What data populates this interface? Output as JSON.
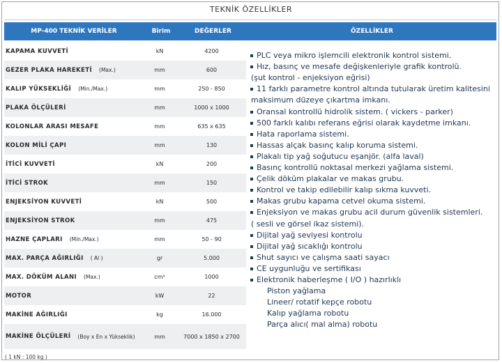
{
  "title": "TEKNİK ÖZELLİKLER",
  "table": {
    "headers": [
      "MP-400 TEKNİK VERİLER",
      "Birim",
      "DEĞERLER",
      "ÖZELLİKLER"
    ],
    "rows": [
      {
        "name": "KAPAMA KUVVETİ",
        "unit": "kN",
        "value": "4200"
      },
      {
        "name": "GEZER PLAKA HAREKETİ",
        "qualifier": "(Max.)",
        "unit": "mm",
        "value": "600"
      },
      {
        "name": "KALIP YÜKSEKLİĞİ",
        "qualifier": "(Min./Max.)",
        "unit": "mm",
        "value": "250 - 850"
      },
      {
        "name": "PLAKA ÖLÇÜLERİ",
        "unit": "mm",
        "value": "1000 x 1000"
      },
      {
        "name": "KOLONLAR ARASI MESAFE",
        "unit": "mm",
        "value": "635 x 635"
      },
      {
        "name": "KOLON MİLİ ÇAPI",
        "unit": "mm",
        "value": "130"
      },
      {
        "name": "İTİCİ KUVVETİ",
        "unit": "kN",
        "value": "200"
      },
      {
        "name": "İTİCİ STROK",
        "unit": "mm",
        "value": "150"
      },
      {
        "name": "ENJEKSİYON KUVVETİ",
        "unit": "kN",
        "value": "500"
      },
      {
        "name": "ENJEKSİYON STROK",
        "unit": "mm",
        "value": "475"
      },
      {
        "name": "HAZNE ÇAPLARI",
        "qualifier": "(Min./Max.)",
        "unit": "mm",
        "value": "50 - 90"
      },
      {
        "name": "MAX. PARÇA AĞIRLIĞI",
        "qualifier": "( Al )",
        "unit": "gr",
        "value": "5.000"
      },
      {
        "name": "MAX. DÖKÜM ALANI",
        "qualifier": "(Max.)",
        "unit": "cm²",
        "value": "1000"
      },
      {
        "name": "MOTOR",
        "unit": "kW",
        "value": "22"
      },
      {
        "name": "MAKİNE AĞIRLIĞI",
        "unit": "kg",
        "value": "16.000"
      },
      {
        "name": "MAKİNE ÖLÇÜLERİ",
        "qualifier": "(Boy x En x Yükseklik)",
        "unit": "mm",
        "value": "7000 x 1850 x 2700"
      }
    ]
  },
  "features": [
    [
      "PLC veya mikro işlemcili elektronik kontrol sistemi."
    ],
    [
      "Hız, basınç ve  mesafe  değişkenleriyle grafik kontrolü.",
      "(şut kontrol - enjeksiyon eğrisi)"
    ],
    [
      "11 farklı parametre kontrol altında tutularak üretim kalitesini",
      "maksimum düzeye çıkartma imkanı."
    ],
    [
      "Oransal  kontrollü  hidrolik sistem. ( vickers - parker)"
    ],
    [
      "500 farklı kalıbı referans eğrisi olarak kaydetme imkanı."
    ],
    [
      "Hata raporlama sistemi."
    ],
    [
      "Hassas alçak basınç kalıp koruma sistemi."
    ],
    [
      "Plakalı tip yağ soğutucu eşanjör. (alfa laval)"
    ],
    [
      "Basınç kontrollü noktasal merkezi yağlama sistemi."
    ],
    [
      "Çelik döküm plakalar ve makas grubu."
    ],
    [
      "Kontrol ve takip edilebilir kalıp sıkma kuvveti."
    ],
    [
      "Makas grubu kapama cetvel okuma sistemi."
    ],
    [
      "Enjeksiyon ve makas grubu acil durum güvenlik sistemleri.",
      "( sesli ve görsel ikaz sistemi)."
    ],
    [
      "Dijital yağ seviyesi kontrolu"
    ],
    [
      "Dijital yağ sıcaklığı kontrolu"
    ],
    [
      "Shut sayıcı ve çalışma saati sayacı"
    ],
    [
      "CE  uygunluğu ve sertifikası"
    ],
    [
      "Elektronik haberleşme ( I/O ) hazırlıklı"
    ]
  ],
  "sub_features": [
    "Piston yağlama",
    "Lineer/ rotatif kepçe robotu",
    "Kalıp yağlama robotu",
    "Parça alıcı( mal alma) robotu"
  ],
  "footnote": "( 1 kN : 100 kg )"
}
